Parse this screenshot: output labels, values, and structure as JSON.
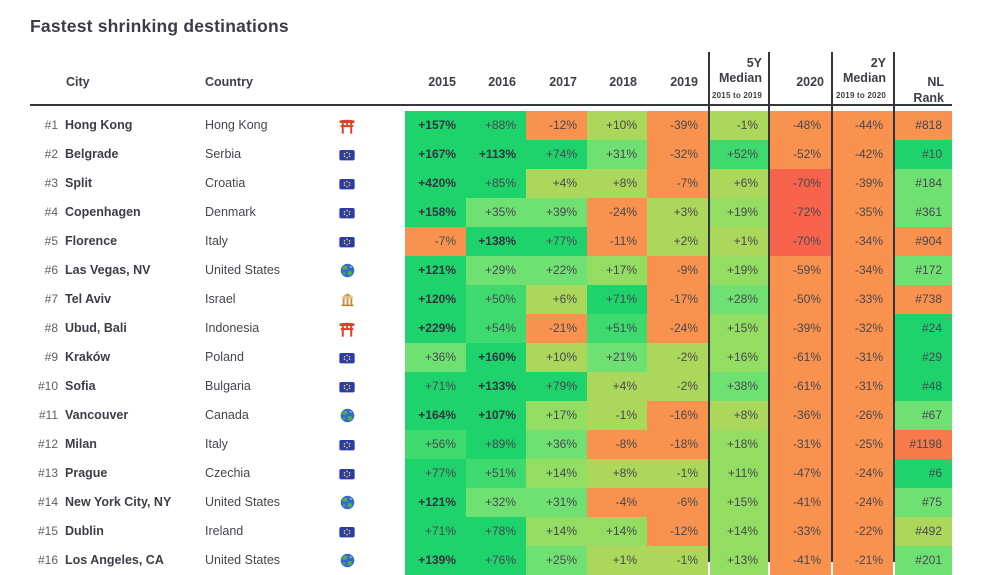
{
  "title": "Fastest shrinking destinations",
  "table": {
    "headers": {
      "city": "City",
      "country": "Country",
      "years": [
        "2015",
        "2016",
        "2017",
        "2018",
        "2019"
      ],
      "median5_top": "5Y",
      "median5_bottom": "Median",
      "median5_sub": "2015 to 2019",
      "y2020": "2020",
      "median2_top": "2Y",
      "median2_bottom": "Median",
      "median2_sub": "2019 to 2020",
      "nl_rank": "NL Rank"
    },
    "palette": {
      "g1": "#1ed36c",
      "g15": "#3eda6e",
      "g2": "#6fe173",
      "g2y": "#92dd62",
      "g3": "#abd75b",
      "o1": "#f8924e",
      "o2": "#f67a4a",
      "r1": "#f8634b"
    },
    "divider_color": "#35353f",
    "icons": {
      "torii": "torii-icon",
      "eu-flag": "eu-flag-icon",
      "globe": "globe-icon",
      "temple": "temple-icon"
    },
    "rows": [
      {
        "rank": "#1",
        "city": "Hong Kong",
        "country": "Hong Kong",
        "icon": "torii",
        "years": [
          [
            "+157%",
            "g1"
          ],
          [
            "+88%",
            "g1"
          ],
          [
            "-12%",
            "o1"
          ],
          [
            "+10%",
            "g3"
          ],
          [
            "-39%",
            "o1"
          ]
        ],
        "med5": [
          "-1%",
          "g3"
        ],
        "y2020": [
          "-48%",
          "o1"
        ],
        "med2": [
          "-44%",
          "o1"
        ],
        "nl": [
          "#818",
          "o1"
        ]
      },
      {
        "rank": "#2",
        "city": "Belgrade",
        "country": "Serbia",
        "icon": "eu-flag",
        "years": [
          [
            "+167%",
            "g1"
          ],
          [
            "+113%",
            "g1"
          ],
          [
            "+74%",
            "g1"
          ],
          [
            "+31%",
            "g2"
          ],
          [
            "-32%",
            "o1"
          ]
        ],
        "med5": [
          "+52%",
          "g15"
        ],
        "y2020": [
          "-52%",
          "o1"
        ],
        "med2": [
          "-42%",
          "o1"
        ],
        "nl": [
          "#10",
          "g1"
        ]
      },
      {
        "rank": "#3",
        "city": "Split",
        "country": "Croatia",
        "icon": "eu-flag",
        "years": [
          [
            "+420%",
            "g1"
          ],
          [
            "+85%",
            "g1"
          ],
          [
            "+4%",
            "g3"
          ],
          [
            "+8%",
            "g3"
          ],
          [
            "-7%",
            "o1"
          ]
        ],
        "med5": [
          "+6%",
          "g3"
        ],
        "y2020": [
          "-70%",
          "r1"
        ],
        "med2": [
          "-39%",
          "o1"
        ],
        "nl": [
          "#184",
          "g2"
        ]
      },
      {
        "rank": "#4",
        "city": "Copenhagen",
        "country": "Denmark",
        "icon": "eu-flag",
        "years": [
          [
            "+158%",
            "g1"
          ],
          [
            "+35%",
            "g2"
          ],
          [
            "+39%",
            "g2"
          ],
          [
            "-24%",
            "o1"
          ],
          [
            "+3%",
            "g3"
          ]
        ],
        "med5": [
          "+19%",
          "g2y"
        ],
        "y2020": [
          "-72%",
          "r1"
        ],
        "med2": [
          "-35%",
          "o1"
        ],
        "nl": [
          "#361",
          "g2"
        ]
      },
      {
        "rank": "#5",
        "city": "Florence",
        "country": "Italy",
        "icon": "eu-flag",
        "years": [
          [
            "-7%",
            "o1"
          ],
          [
            "+138%",
            "g1"
          ],
          [
            "+77%",
            "g1"
          ],
          [
            "-11%",
            "o1"
          ],
          [
            "+2%",
            "g3"
          ]
        ],
        "med5": [
          "+1%",
          "g3"
        ],
        "y2020": [
          "-70%",
          "r1"
        ],
        "med2": [
          "-34%",
          "o1"
        ],
        "nl": [
          "#904",
          "o1"
        ]
      },
      {
        "rank": "#6",
        "city": "Las Vegas, NV",
        "country": "United States",
        "icon": "globe",
        "years": [
          [
            "+121%",
            "g1"
          ],
          [
            "+29%",
            "g2"
          ],
          [
            "+22%",
            "g2"
          ],
          [
            "+17%",
            "g2y"
          ],
          [
            "-9%",
            "o1"
          ]
        ],
        "med5": [
          "+19%",
          "g2y"
        ],
        "y2020": [
          "-59%",
          "o1"
        ],
        "med2": [
          "-34%",
          "o1"
        ],
        "nl": [
          "#172",
          "g2"
        ]
      },
      {
        "rank": "#7",
        "city": "Tel Aviv",
        "country": "Israel",
        "icon": "temple",
        "years": [
          [
            "+120%",
            "g1"
          ],
          [
            "+50%",
            "g15"
          ],
          [
            "+6%",
            "g3"
          ],
          [
            "+71%",
            "g1"
          ],
          [
            "-17%",
            "o1"
          ]
        ],
        "med5": [
          "+28%",
          "g2"
        ],
        "y2020": [
          "-50%",
          "o1"
        ],
        "med2": [
          "-33%",
          "o1"
        ],
        "nl": [
          "#738",
          "o1"
        ]
      },
      {
        "rank": "#8",
        "city": "Ubud, Bali",
        "country": "Indonesia",
        "icon": "torii",
        "years": [
          [
            "+229%",
            "g1"
          ],
          [
            "+54%",
            "g15"
          ],
          [
            "-21%",
            "o1"
          ],
          [
            "+51%",
            "g15"
          ],
          [
            "-24%",
            "o1"
          ]
        ],
        "med5": [
          "+15%",
          "g2y"
        ],
        "y2020": [
          "-39%",
          "o1"
        ],
        "med2": [
          "-32%",
          "o1"
        ],
        "nl": [
          "#24",
          "g1"
        ]
      },
      {
        "rank": "#9",
        "city": "Kraków",
        "country": "Poland",
        "icon": "eu-flag",
        "years": [
          [
            "+36%",
            "g2"
          ],
          [
            "+160%",
            "g1"
          ],
          [
            "+10%",
            "g3"
          ],
          [
            "+21%",
            "g2"
          ],
          [
            "-2%",
            "g3"
          ]
        ],
        "med5": [
          "+16%",
          "g2y"
        ],
        "y2020": [
          "-61%",
          "o1"
        ],
        "med2": [
          "-31%",
          "o1"
        ],
        "nl": [
          "#29",
          "g1"
        ]
      },
      {
        "rank": "#10",
        "city": "Sofia",
        "country": "Bulgaria",
        "icon": "eu-flag",
        "years": [
          [
            "+71%",
            "g1"
          ],
          [
            "+133%",
            "g1"
          ],
          [
            "+79%",
            "g1"
          ],
          [
            "+4%",
            "g3"
          ],
          [
            "-2%",
            "g3"
          ]
        ],
        "med5": [
          "+38%",
          "g2"
        ],
        "y2020": [
          "-61%",
          "o1"
        ],
        "med2": [
          "-31%",
          "o1"
        ],
        "nl": [
          "#48",
          "g1"
        ]
      },
      {
        "rank": "#11",
        "city": "Vancouver",
        "country": "Canada",
        "icon": "globe",
        "years": [
          [
            "+164%",
            "g1"
          ],
          [
            "+107%",
            "g1"
          ],
          [
            "+17%",
            "g2y"
          ],
          [
            "-1%",
            "g3"
          ],
          [
            "-16%",
            "o1"
          ]
        ],
        "med5": [
          "+8%",
          "g3"
        ],
        "y2020": [
          "-36%",
          "o1"
        ],
        "med2": [
          "-26%",
          "o1"
        ],
        "nl": [
          "#67",
          "g2"
        ]
      },
      {
        "rank": "#12",
        "city": "Milan",
        "country": "Italy",
        "icon": "eu-flag",
        "years": [
          [
            "+56%",
            "g15"
          ],
          [
            "+89%",
            "g1"
          ],
          [
            "+36%",
            "g2"
          ],
          [
            "-8%",
            "o1"
          ],
          [
            "-18%",
            "o1"
          ]
        ],
        "med5": [
          "+18%",
          "g2y"
        ],
        "y2020": [
          "-31%",
          "o1"
        ],
        "med2": [
          "-25%",
          "o1"
        ],
        "nl": [
          "#1198",
          "o2"
        ]
      },
      {
        "rank": "#13",
        "city": "Prague",
        "country": "Czechia",
        "icon": "eu-flag",
        "years": [
          [
            "+77%",
            "g1"
          ],
          [
            "+51%",
            "g15"
          ],
          [
            "+14%",
            "g2y"
          ],
          [
            "+8%",
            "g3"
          ],
          [
            "-1%",
            "g3"
          ]
        ],
        "med5": [
          "+11%",
          "g2y"
        ],
        "y2020": [
          "-47%",
          "o1"
        ],
        "med2": [
          "-24%",
          "o1"
        ],
        "nl": [
          "#6",
          "g1"
        ]
      },
      {
        "rank": "#14",
        "city": "New York City, NY",
        "country": "United States",
        "icon": "globe",
        "years": [
          [
            "+121%",
            "g1"
          ],
          [
            "+32%",
            "g2"
          ],
          [
            "+31%",
            "g2"
          ],
          [
            "-4%",
            "o1"
          ],
          [
            "-6%",
            "o1"
          ]
        ],
        "med5": [
          "+15%",
          "g2y"
        ],
        "y2020": [
          "-41%",
          "o1"
        ],
        "med2": [
          "-24%",
          "o1"
        ],
        "nl": [
          "#75",
          "g2"
        ]
      },
      {
        "rank": "#15",
        "city": "Dublin",
        "country": "Ireland",
        "icon": "eu-flag",
        "years": [
          [
            "+71%",
            "g1"
          ],
          [
            "+78%",
            "g1"
          ],
          [
            "+14%",
            "g2y"
          ],
          [
            "+14%",
            "g2y"
          ],
          [
            "-12%",
            "o1"
          ]
        ],
        "med5": [
          "+14%",
          "g2y"
        ],
        "y2020": [
          "-33%",
          "o1"
        ],
        "med2": [
          "-22%",
          "o1"
        ],
        "nl": [
          "#492",
          "g3"
        ]
      },
      {
        "rank": "#16",
        "city": "Los Angeles, CA",
        "country": "United States",
        "icon": "globe",
        "years": [
          [
            "+139%",
            "g1"
          ],
          [
            "+76%",
            "g1"
          ],
          [
            "+25%",
            "g2"
          ],
          [
            "+1%",
            "g3"
          ],
          [
            "-1%",
            "g3"
          ]
        ],
        "med5": [
          "+13%",
          "g2y"
        ],
        "y2020": [
          "-41%",
          "o1"
        ],
        "med2": [
          "-21%",
          "o1"
        ],
        "nl": [
          "#201",
          "g2"
        ]
      }
    ]
  }
}
